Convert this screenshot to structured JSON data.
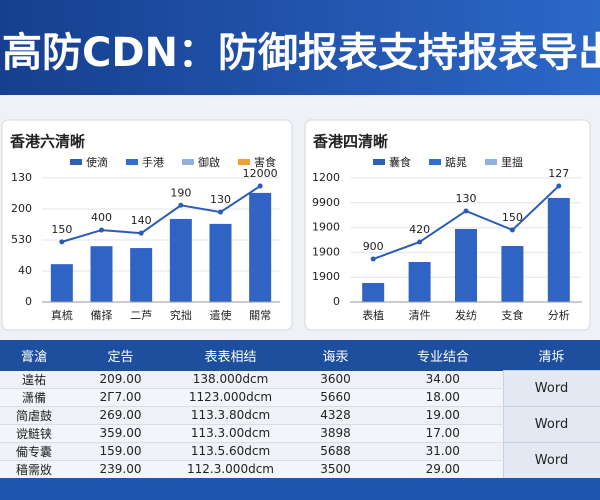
{
  "header": {
    "title": "高防CDN：防御报表支持报表导出"
  },
  "chart_data": [
    {
      "type": "bar-line",
      "title": "香港六清晰",
      "legend": [
        {
          "name": "使滴",
          "color": "#2c5fb8"
        },
        {
          "name": "手港",
          "color": "#2f6fd0"
        },
        {
          "name": "御啟",
          "color": "#8fb0e0"
        },
        {
          "name": "害食",
          "color": "#f0a030"
        }
      ],
      "categories": [
        "真梳",
        "備择",
        "二芦",
        "究拙",
        "遣使",
        "關常"
      ],
      "series": [
        {
          "kind": "bar",
          "color": "#2f63c4",
          "values": [
            61,
            90,
            87,
            134,
            126,
            176
          ]
        },
        {
          "kind": "line",
          "color": "#2b5cb8",
          "values": [
            97,
            116,
            111,
            156,
            145,
            187
          ]
        }
      ],
      "annotations": [
        "150",
        "400",
        "140",
        "190",
        "130",
        "12000"
      ],
      "ylim": [
        0,
        200
      ],
      "yticks": [
        0,
        {
          "value": 50,
          "label": "40"
        },
        {
          "value": 100,
          "label": "530"
        },
        {
          "value": 150,
          "label": "200"
        },
        {
          "value": 200,
          "label": "130"
        }
      ],
      "grid": true
    },
    {
      "type": "bar-line",
      "title": "香港四清晰",
      "legend": [
        {
          "name": "囊食",
          "color": "#2c5fb8"
        },
        {
          "name": "踮晁",
          "color": "#2f6fd0"
        },
        {
          "name": "里搵",
          "color": "#8fb0e0"
        }
      ],
      "categories": [
        "表植",
        "清件",
        "发纺",
        "支食",
        "分析"
      ],
      "series": [
        {
          "kind": "bar",
          "color": "#2f63c4",
          "values": [
            184,
            387,
            707,
            542,
            1007
          ]
        },
        {
          "kind": "line",
          "color": "#2b5cb8",
          "values": [
            416,
            581,
            881,
            697,
            1123
          ]
        }
      ],
      "annotations": [
        "900",
        "420",
        "130",
        "150",
        "127"
      ],
      "ylim": [
        0,
        1200
      ],
      "yticks": [
        0,
        {
          "value": 240,
          "label": "1900"
        },
        {
          "value": 480,
          "label": "1900"
        },
        {
          "value": 720,
          "label": "1900"
        },
        {
          "value": 960,
          "label": "9900"
        },
        1200
      ],
      "grid": true
    }
  ],
  "table": {
    "header": [
      "膏滄",
      "定告",
      "表表相结",
      "诲汞",
      "专业结合",
      "清坼"
    ],
    "rows": [
      [
        "遑祐",
        "209.00",
        "138.000dcm",
        "3600",
        "34.00"
      ],
      [
        "潇備",
        "2Г7.00",
        "1123.000dcm",
        "5660",
        "18.00"
      ],
      [
        "简虐鼓",
        "269.00",
        "113.3.80dcm",
        "4328",
        "19.00"
      ],
      [
        "谠鲢铗",
        "359.00",
        "113.3.00dcm",
        "3898",
        "17.00"
      ],
      [
        "僃专囊",
        "159.00",
        "113.5.60dcm",
        "5688",
        "31.00"
      ],
      [
        "穑需敚",
        "239.00",
        "112.3.000dcm",
        "3500",
        "29.00"
      ]
    ],
    "buttons": [
      "Word",
      "Word",
      "Word"
    ]
  }
}
